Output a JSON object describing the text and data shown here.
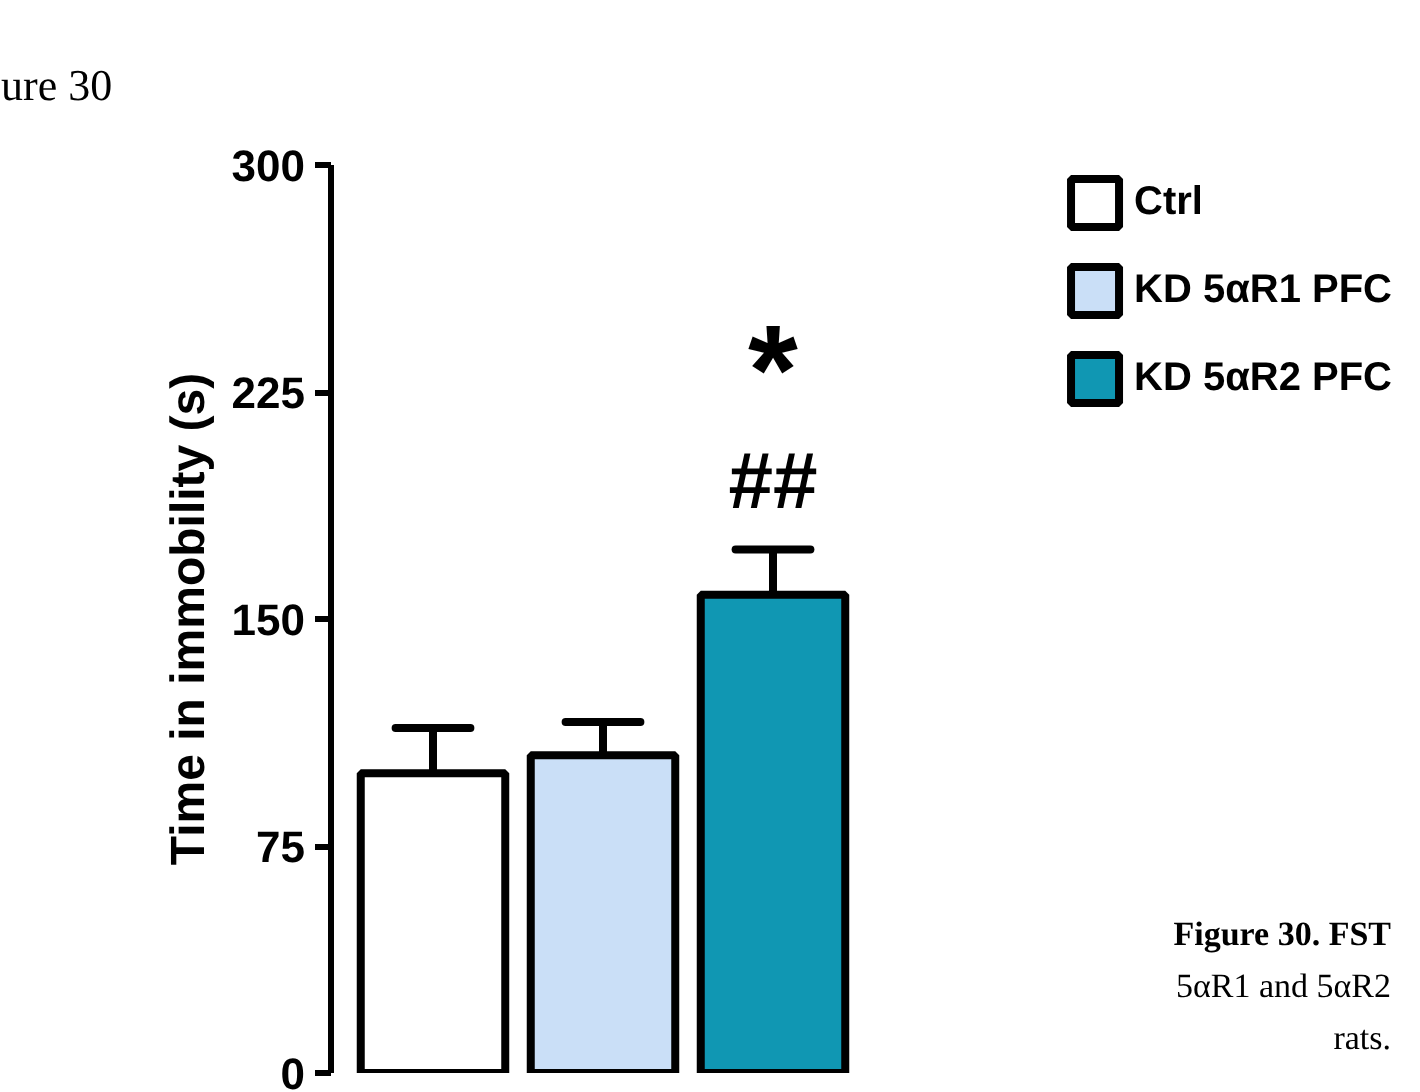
{
  "chart_data": {
    "type": "bar",
    "ylabel": "Time in immobility (s)",
    "categories": [
      null,
      null,
      null
    ],
    "stacked": true,
    "series": [
      {
        "name": "Ctrl",
        "color": "#ffffff",
        "values": [
          99,
          null,
          null
        ],
        "errors": [
          15,
          null,
          null
        ]
      },
      {
        "name": "KD 5αR1 PFC",
        "color": "#cadff7",
        "values": [
          null,
          105,
          null
        ],
        "errors": [
          null,
          11,
          null
        ]
      },
      {
        "name": "KD 5αR2 PFC",
        "color": "#1097b3",
        "values": [
          null,
          null,
          158
        ],
        "errors": [
          null,
          null,
          15
        ]
      }
    ],
    "ylim": [
      0,
      300
    ],
    "yticks": [
      0,
      75,
      150,
      225,
      300
    ],
    "grid": false,
    "legend": "top right",
    "tick_labels": "y",
    "annotations": [
      "*",
      "##",
      "ure 30",
      "Figure 30. FST",
      "5αR1 and 5αR2",
      "rats."
    ]
  }
}
